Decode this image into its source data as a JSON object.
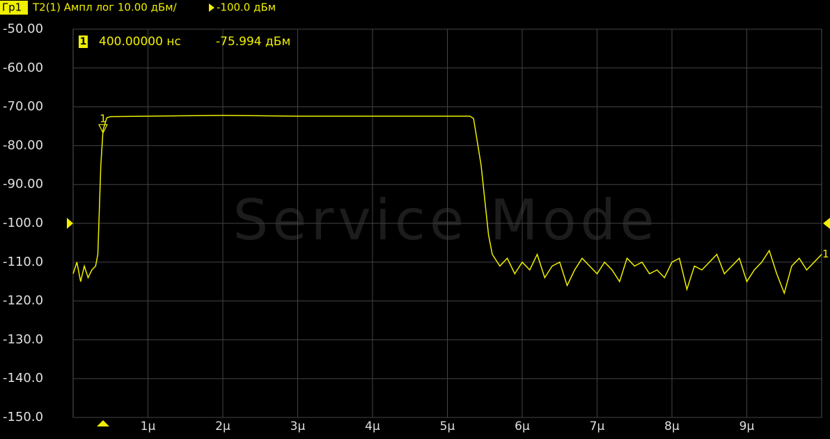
{
  "chart_data": {
    "type": "line",
    "header": {
      "channel": "Гр1",
      "text": "T2(1) Ампл лог 10.00 дБм/",
      "reference_text": "-100.0 дБм"
    },
    "watermark": "Service Mode",
    "reference_level": -100,
    "trace_label": "1",
    "color": "#f0f000",
    "grid": true,
    "xlim": [
      0,
      10
    ],
    "ylim": [
      -150,
      -50
    ],
    "yticks": [
      {
        "value": -50,
        "label": "-50.00"
      },
      {
        "value": -60,
        "label": "-60.00"
      },
      {
        "value": -70,
        "label": "-70.00"
      },
      {
        "value": -80,
        "label": "-80.00"
      },
      {
        "value": -90,
        "label": "-90.00"
      },
      {
        "value": -100,
        "label": "-100.0"
      },
      {
        "value": -110,
        "label": "-110.0"
      },
      {
        "value": -120,
        "label": "-120.0"
      },
      {
        "value": -130,
        "label": "-130.0"
      },
      {
        "value": -140,
        "label": "-140.0"
      },
      {
        "value": -150,
        "label": "-150.0"
      }
    ],
    "xticks": [
      {
        "value": 1,
        "label": "1μ"
      },
      {
        "value": 2,
        "label": "2μ"
      },
      {
        "value": 3,
        "label": "3μ"
      },
      {
        "value": 4,
        "label": "4μ"
      },
      {
        "value": 5,
        "label": "5μ"
      },
      {
        "value": 6,
        "label": "6μ"
      },
      {
        "value": 7,
        "label": "7μ"
      },
      {
        "value": 8,
        "label": "8μ"
      },
      {
        "value": 9,
        "label": "9μ"
      }
    ],
    "markers": [
      {
        "label": "1",
        "x": 0.4,
        "value": -75.994,
        "x_label": "400.00000 нс",
        "value_label": "-75.994 дБм"
      }
    ],
    "x": [
      0,
      0.05,
      0.1,
      0.15,
      0.2,
      0.25,
      0.3,
      0.33,
      0.37,
      0.4,
      0.45,
      0.5,
      1,
      1.5,
      2,
      2.5,
      3,
      3.5,
      4,
      4.5,
      5,
      5.3,
      5.35,
      5.45,
      5.55,
      5.6,
      5.7,
      5.8,
      5.9,
      6.0,
      6.1,
      6.2,
      6.3,
      6.4,
      6.5,
      6.6,
      6.7,
      6.8,
      6.9,
      7.0,
      7.1,
      7.2,
      7.3,
      7.4,
      7.5,
      7.6,
      7.7,
      7.8,
      7.9,
      8.0,
      8.1,
      8.2,
      8.3,
      8.4,
      8.5,
      8.6,
      8.7,
      8.8,
      8.9,
      9.0,
      9.1,
      9.2,
      9.3,
      9.4,
      9.5,
      9.6,
      9.7,
      9.8,
      9.9,
      10.0
    ],
    "series": [
      {
        "values": [
          -113,
          -110,
          -115,
          -111,
          -114,
          -112,
          -111,
          -108,
          -85,
          -75.994,
          -72.8,
          -72.5,
          -72.4,
          -72.3,
          -72.2,
          -72.3,
          -72.4,
          -72.4,
          -72.4,
          -72.4,
          -72.4,
          -72.4,
          -73,
          -85,
          -103,
          -108,
          -111,
          -109,
          -113,
          -110,
          -112,
          -108,
          -114,
          -111,
          -110,
          -116,
          -112,
          -109,
          -111,
          -113,
          -110,
          -112,
          -115,
          -109,
          -111,
          -110,
          -113,
          -112,
          -114,
          -110,
          -109,
          -117,
          -111,
          -112,
          -110,
          -108,
          -113,
          -111,
          -109,
          -115,
          -112,
          -110,
          -107,
          -113,
          -118,
          -111,
          -109,
          -112,
          -110,
          -108
        ]
      }
    ]
  }
}
